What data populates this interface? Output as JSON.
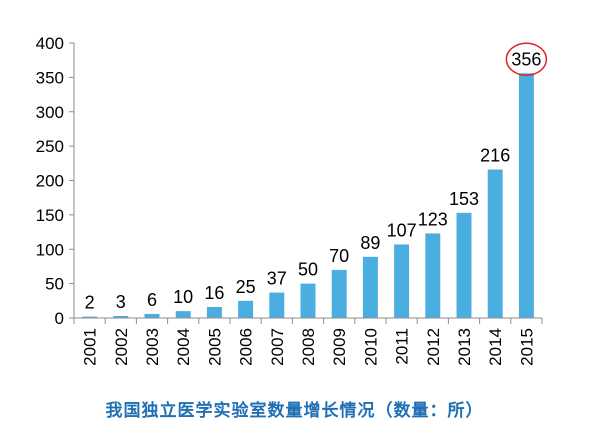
{
  "chart_data": {
    "type": "bar",
    "categories": [
      "2001",
      "2002",
      "2003",
      "2004",
      "2005",
      "2006",
      "2007",
      "2008",
      "2009",
      "2010",
      "2011",
      "2012",
      "2013",
      "2014",
      "2015"
    ],
    "values": [
      2,
      3,
      6,
      10,
      16,
      25,
      37,
      50,
      70,
      89,
      107,
      123,
      153,
      216,
      356
    ],
    "data_labels": [
      "2",
      "3",
      "6",
      "10",
      "16",
      "25",
      "37",
      "50",
      "70",
      "89",
      "107",
      "123",
      "153",
      "216",
      "356"
    ],
    "ylim": [
      0,
      400
    ],
    "yticks": [
      0,
      50,
      100,
      150,
      200,
      250,
      300,
      350,
      400
    ],
    "grid": false,
    "legend": "none",
    "highlight_index": 14,
    "title": "",
    "xlabel": "",
    "ylabel": ""
  },
  "caption": "我国独立医学实验室数量增长情况（数量：所）",
  "colors": {
    "bar": "#4aaee0",
    "axis": "#8c8c8c",
    "text": "#000000",
    "highlight_circle": "#e02020",
    "caption": "#1f6fb4"
  }
}
